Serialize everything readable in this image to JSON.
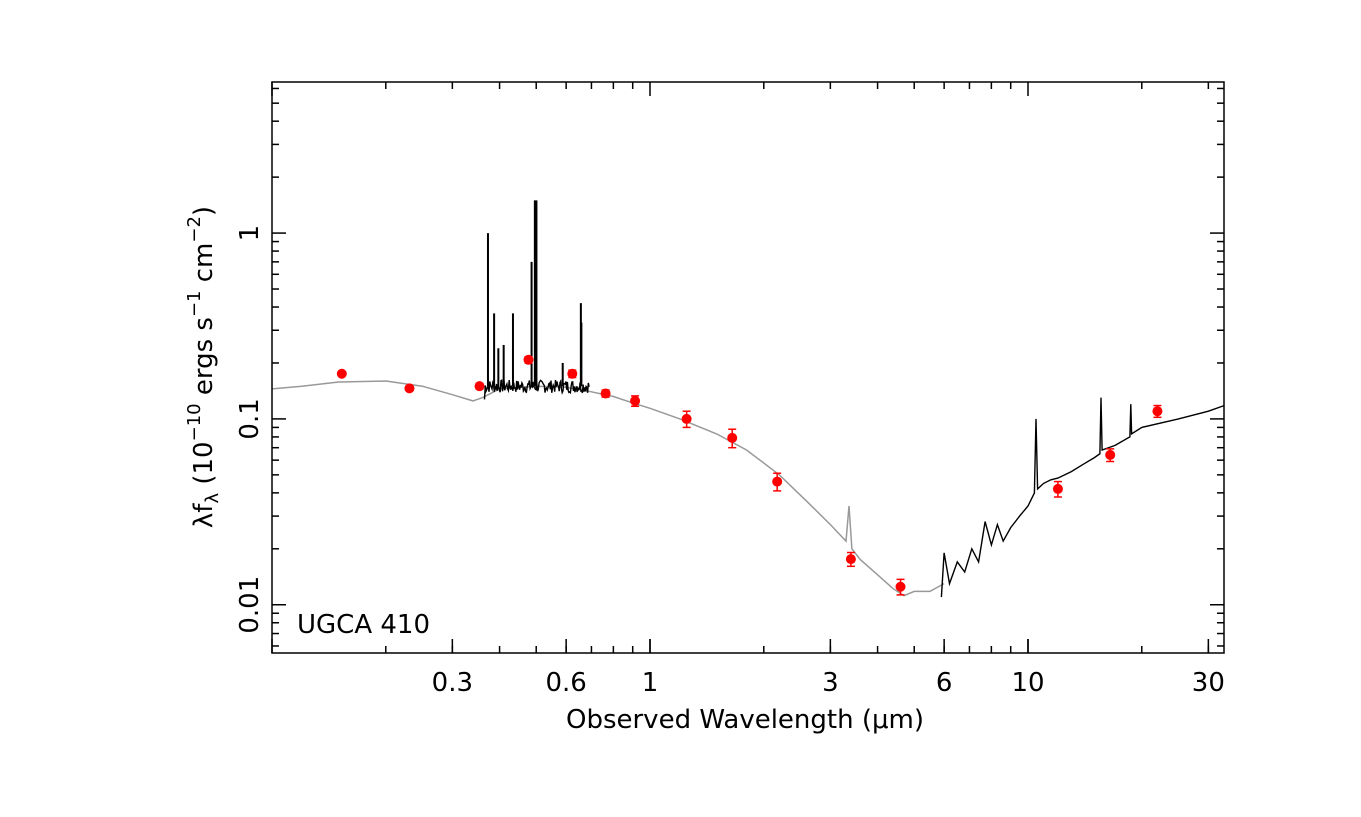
{
  "chart_data": {
    "type": "scatter",
    "title": "",
    "annotation": "UGCA 410",
    "xlabel": "Observed Wavelength (μm)",
    "ylabel": {
      "prefix": "λf",
      "sub": "λ",
      "open": " (10",
      "exp1": "−10",
      "mid": " ergs s",
      "exp2": "−1",
      "mid2": " cm",
      "exp3": "−2",
      "close": ")"
    },
    "x_scale": "log",
    "y_scale": "log",
    "xlim": [
      0.1,
      33
    ],
    "ylim": [
      0.0055,
      6.5
    ],
    "grid": false,
    "x_ticks": [
      {
        "value": 0.3,
        "label": "0.3"
      },
      {
        "value": 0.6,
        "label": "0.6"
      },
      {
        "value": 1,
        "label": "1"
      },
      {
        "value": 3,
        "label": "3"
      },
      {
        "value": 6,
        "label": "6"
      },
      {
        "value": 10,
        "label": "10"
      },
      {
        "value": 30,
        "label": "30"
      }
    ],
    "y_ticks": [
      {
        "value": 0.01,
        "label": "0.01"
      },
      {
        "value": 0.1,
        "label": "0.1"
      },
      {
        "value": 1,
        "label": "1"
      }
    ],
    "colors": {
      "photometry": "#ff0000",
      "model": "#999999",
      "spectrum": "#000000"
    },
    "photometry": [
      {
        "x": 0.153,
        "y": 0.175,
        "err": 0.004
      },
      {
        "x": 0.231,
        "y": 0.146,
        "err": 0.004
      },
      {
        "x": 0.354,
        "y": 0.15,
        "err": 0.005
      },
      {
        "x": 0.477,
        "y": 0.208,
        "err": 0.008
      },
      {
        "x": 0.623,
        "y": 0.175,
        "err": 0.008
      },
      {
        "x": 0.763,
        "y": 0.137,
        "err": 0.006
      },
      {
        "x": 0.913,
        "y": 0.125,
        "err": 0.008
      },
      {
        "x": 1.25,
        "y": 0.1,
        "err": 0.01
      },
      {
        "x": 1.65,
        "y": 0.079,
        "err": 0.009
      },
      {
        "x": 2.17,
        "y": 0.046,
        "err": 0.005
      },
      {
        "x": 3.4,
        "y": 0.0176,
        "err": 0.0015
      },
      {
        "x": 4.6,
        "y": 0.0125,
        "err": 0.0012
      },
      {
        "x": 12,
        "y": 0.042,
        "err": 0.004
      },
      {
        "x": 16.5,
        "y": 0.064,
        "err": 0.005
      },
      {
        "x": 22,
        "y": 0.11,
        "err": 0.008
      }
    ],
    "model_sed": [
      [
        0.1,
        0.145
      ],
      [
        0.12,
        0.15
      ],
      [
        0.15,
        0.158
      ],
      [
        0.2,
        0.16
      ],
      [
        0.25,
        0.15
      ],
      [
        0.3,
        0.135
      ],
      [
        0.34,
        0.125
      ],
      [
        0.36,
        0.13
      ],
      [
        0.4,
        0.145
      ],
      [
        0.5,
        0.15
      ],
      [
        0.6,
        0.148
      ],
      [
        0.7,
        0.14
      ],
      [
        0.8,
        0.132
      ],
      [
        0.9,
        0.122
      ],
      [
        1.0,
        0.114
      ],
      [
        1.2,
        0.1
      ],
      [
        1.5,
        0.083
      ],
      [
        1.8,
        0.068
      ],
      [
        2.2,
        0.05
      ],
      [
        2.6,
        0.036
      ],
      [
        3.0,
        0.027
      ],
      [
        3.3,
        0.022
      ],
      [
        3.36,
        0.034
      ],
      [
        3.42,
        0.02
      ],
      [
        3.6,
        0.0175
      ],
      [
        4.0,
        0.0145
      ],
      [
        4.4,
        0.0122
      ],
      [
        4.7,
        0.0112
      ],
      [
        5.0,
        0.0118
      ],
      [
        5.5,
        0.0118
      ],
      [
        6.0,
        0.013
      ]
    ],
    "ir_spectrum": [
      [
        5.9,
        0.011
      ],
      [
        6.0,
        0.019
      ],
      [
        6.2,
        0.013
      ],
      [
        6.5,
        0.017
      ],
      [
        6.8,
        0.015
      ],
      [
        7.1,
        0.02
      ],
      [
        7.4,
        0.017
      ],
      [
        7.7,
        0.028
      ],
      [
        8.0,
        0.021
      ],
      [
        8.3,
        0.027
      ],
      [
        8.6,
        0.022
      ],
      [
        9.0,
        0.026
      ],
      [
        9.5,
        0.03
      ],
      [
        10.0,
        0.034
      ],
      [
        10.4,
        0.04
      ],
      [
        10.5,
        0.1
      ],
      [
        10.6,
        0.042
      ],
      [
        11.0,
        0.045
      ],
      [
        11.5,
        0.047
      ],
      [
        12.0,
        0.048
      ],
      [
        13.0,
        0.052
      ],
      [
        14.0,
        0.057
      ],
      [
        15.0,
        0.062
      ],
      [
        15.5,
        0.065
      ],
      [
        15.6,
        0.13
      ],
      [
        15.7,
        0.068
      ],
      [
        17.0,
        0.072
      ],
      [
        18.6,
        0.08
      ],
      [
        18.7,
        0.12
      ],
      [
        18.8,
        0.083
      ],
      [
        20.0,
        0.09
      ],
      [
        25.0,
        0.1
      ],
      [
        30.0,
        0.11
      ],
      [
        33.0,
        0.118
      ]
    ],
    "optical_spectrum": {
      "range": [
        0.365,
        0.69
      ],
      "continuum": 0.15,
      "lines": [
        {
          "x": 0.3727,
          "y": 1.0
        },
        {
          "x": 0.3869,
          "y": 0.37
        },
        {
          "x": 0.397,
          "y": 0.24
        },
        {
          "x": 0.4101,
          "y": 0.25
        },
        {
          "x": 0.434,
          "y": 0.37
        },
        {
          "x": 0.4861,
          "y": 0.7
        },
        {
          "x": 0.4959,
          "y": 1.5
        },
        {
          "x": 0.5007,
          "y": 1.5
        },
        {
          "x": 0.5876,
          "y": 0.2
        },
        {
          "x": 0.6563,
          "y": 0.42
        },
        {
          "x": 0.6584,
          "y": 0.33
        }
      ]
    }
  }
}
